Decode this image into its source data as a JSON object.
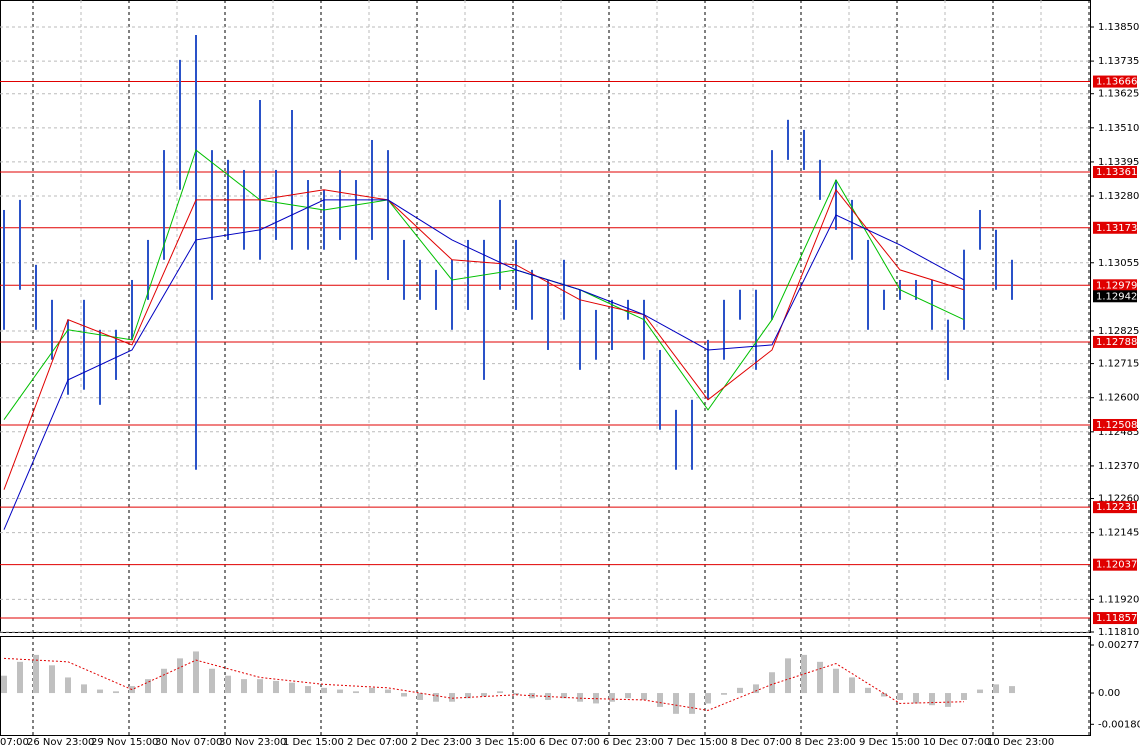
{
  "chart_data": {
    "type": "ohlc",
    "x_labels": [
      "07:00",
      "26 Nov 23:00",
      "29 Nov 15:00",
      "30 Nov 07:00",
      "30 Nov 23:00",
      "1 Dec 15:00",
      "2 Dec 07:00",
      "2 Dec 23:00",
      "3 Dec 15:00",
      "6 Dec 07:00",
      "6 Dec 23:00",
      "7 Dec 15:00",
      "8 Dec 07:00",
      "8 Dec 23:00",
      "9 Dec 15:00",
      "10 Dec 07:00",
      "10 Dec 23:00"
    ],
    "ylim": [
      1.1181,
      1.13941
    ],
    "yticks": [
      {
        "value": 1.1385,
        "label": "1.13850"
      },
      {
        "value": 1.13735,
        "label": "1.13735"
      },
      {
        "value": 1.13625,
        "label": "1.13625"
      },
      {
        "value": 1.1351,
        "label": "1.13510"
      },
      {
        "value": 1.13395,
        "label": "1.13395"
      },
      {
        "value": 1.1328,
        "label": "1.13280"
      },
      {
        "value": 1.13055,
        "label": "1.13055"
      },
      {
        "value": 1.12825,
        "label": "1.12825"
      },
      {
        "value": 1.12715,
        "label": "1.12715"
      },
      {
        "value": 1.126,
        "label": "1.12600"
      },
      {
        "value": 1.12485,
        "label": "1.12485"
      },
      {
        "value": 1.1237,
        "label": "1.12370"
      },
      {
        "value": 1.1226,
        "label": "1.12260"
      },
      {
        "value": 1.12145,
        "label": "1.12145"
      },
      {
        "value": 1.1192,
        "label": "1.11920"
      },
      {
        "value": 1.1181,
        "label": "1.11810"
      }
    ],
    "levels": [
      {
        "value": 1.13666,
        "label": "1.13666"
      },
      {
        "value": 1.13361,
        "label": "1.13361"
      },
      {
        "value": 1.13173,
        "label": "1.13173"
      },
      {
        "value": 1.12979,
        "label": "1.12979"
      },
      {
        "value": 1.12788,
        "label": "1.12788"
      },
      {
        "value": 1.12508,
        "label": "1.12508"
      },
      {
        "value": 1.12231,
        "label": "1.12231"
      },
      {
        "value": 1.12037,
        "label": "1.12037"
      },
      {
        "value": 1.11857,
        "label": "1.11857"
      }
    ],
    "level_color": "#e00000",
    "current_price": {
      "value": 1.12942,
      "label": "1.12942"
    },
    "bar_color": "#2a52c8",
    "high": [
      1.13233,
      1.13267,
      1.13048,
      1.1293,
      1.12863,
      1.1293,
      1.12829,
      1.12829,
      1.12997,
      1.13132,
      1.13435,
      1.13739,
      1.13823,
      1.13435,
      1.13402,
      1.13368,
      1.13604,
      1.13368,
      1.1357,
      1.13334,
      1.13301,
      1.13368,
      1.13334,
      1.13469,
      1.13435,
      1.13132,
      1.13065,
      1.13031,
      1.13065,
      1.13132,
      1.13132,
      1.13267,
      1.13132,
      1.13031,
      1.12997,
      1.13065,
      1.12964,
      1.12896,
      1.1293,
      1.1293,
      1.1293,
      1.12761,
      1.12559,
      1.12593,
      1.12795,
      1.1293,
      1.12964,
      1.12964,
      1.13435,
      1.13537,
      1.13503,
      1.13402,
      1.13334,
      1.13267,
      1.13132,
      1.12964,
      1.12997,
      1.12997,
      1.12997,
      1.12863,
      1.13099,
      1.13233,
      1.13166,
      1.13065
    ],
    "low": [
      1.12829,
      1.12964,
      1.12829,
      1.12728,
      1.1261,
      1.12627,
      1.12576,
      1.1266,
      1.12795,
      1.1293,
      1.13065,
      1.13301,
      1.12357,
      1.1293,
      1.13132,
      1.13099,
      1.13065,
      1.13132,
      1.13099,
      1.13099,
      1.13099,
      1.13132,
      1.13065,
      1.13132,
      1.12997,
      1.1293,
      1.1293,
      1.12896,
      1.12829,
      1.12896,
      1.1266,
      1.12964,
      1.12896,
      1.12863,
      1.12761,
      1.12863,
      1.12694,
      1.12728,
      1.12761,
      1.12863,
      1.12728,
      1.12492,
      1.12357,
      1.12357,
      1.12593,
      1.12728,
      1.12863,
      1.12694,
      1.12863,
      1.13402,
      1.13368,
      1.13267,
      1.13166,
      1.13065,
      1.12829,
      1.12896,
      1.1293,
      1.1293,
      1.12829,
      1.1266,
      1.12829,
      1.13099,
      1.12964,
      1.1293
    ],
    "ma_index": [
      0,
      4,
      8,
      12,
      16,
      20,
      24,
      28,
      32,
      36,
      40,
      44,
      48,
      52,
      56,
      60
    ],
    "series": [
      {
        "color": "#00c000",
        "values": [
          1.12526,
          1.12829,
          1.12795,
          1.13435,
          1.13267,
          1.13233,
          1.13267,
          1.12997,
          1.13031,
          1.12964,
          1.12863,
          1.12559,
          1.12863,
          1.13334,
          1.12964,
          1.12863
        ]
      },
      {
        "color": "#e00000",
        "values": [
          1.1229,
          1.12863,
          1.12778,
          1.13267,
          1.13267,
          1.13301,
          1.13267,
          1.13065,
          1.13048,
          1.1293,
          1.1288,
          1.12593,
          1.12761,
          1.13301,
          1.13031,
          1.12964
        ]
      },
      {
        "color": "#0000c0",
        "values": [
          1.12155,
          1.1266,
          1.12761,
          1.13132,
          1.13166,
          1.13267,
          1.13267,
          1.13132,
          1.13031,
          1.12964,
          1.1288,
          1.12761,
          1.12778,
          1.13216,
          1.13115,
          1.12997
        ]
      }
    ],
    "osc_ylim": [
      -0.00242,
      0.00329
    ],
    "osc_yticks": [
      {
        "value": 0.00277,
        "label": "0.00277"
      },
      {
        "value": 0,
        "label": "0.00"
      },
      {
        "value": -0.001803,
        "label": "-0.001803"
      }
    ],
    "histogram": [
      0.001,
      0.0018,
      0.0022,
      0.0016,
      0.0009,
      0.0005,
      0.0002,
      0.0001,
      0.0004,
      0.0008,
      0.0014,
      0.002,
      0.0024,
      0.0014,
      0.001,
      0.0008,
      0.0008,
      0.0007,
      0.0006,
      0.0004,
      0.0003,
      0.0002,
      0.0001,
      0.0003,
      0.0002,
      -0.0002,
      -0.0004,
      -0.0005,
      -0.0005,
      -0.0003,
      -0.0002,
      0.0001,
      -0.0001,
      -0.0003,
      -0.0004,
      -0.0003,
      -0.0005,
      -0.0006,
      -0.0005,
      -0.0003,
      -0.0004,
      -0.0008,
      -0.0012,
      -0.0012,
      -0.0006,
      -0.0001,
      0.0003,
      0.0005,
      0.0012,
      0.002,
      0.0022,
      0.0018,
      0.0014,
      0.0009,
      0.0003,
      -0.0002,
      -0.0004,
      -0.0006,
      -0.0007,
      -0.0008,
      -0.0004,
      0.0002,
      0.0005,
      0.0004
    ],
    "signal": [
      0.002,
      0.0018,
      0.0002,
      0.0019,
      0.0009,
      0.0005,
      0.0003,
      -0.0003,
      -0.0001,
      -0.0003,
      -0.0004,
      -0.001,
      0.0005,
      0.0017,
      -0.0006,
      -0.0005
    ],
    "signal_color": "#e00000"
  }
}
